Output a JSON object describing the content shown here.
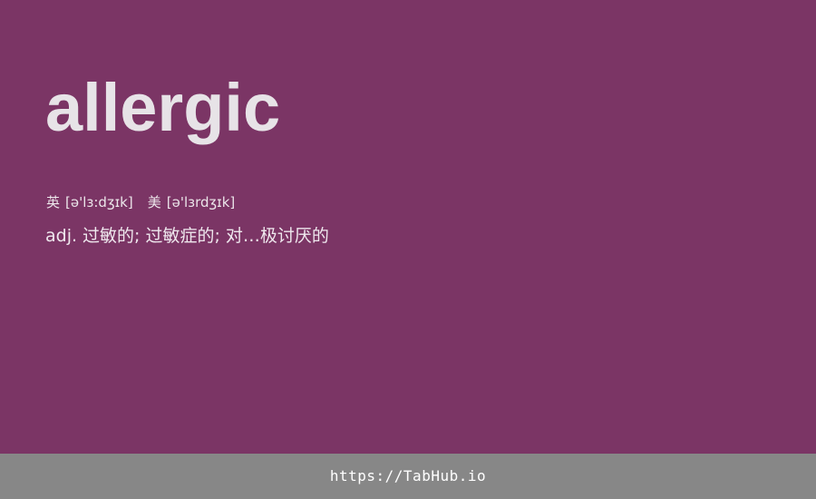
{
  "colors": {
    "background": "#7b3565",
    "footer_background": "#878787",
    "word_text": "#e7e3e7",
    "footer_text": "#ffffff"
  },
  "entry": {
    "word": "allergic",
    "pronunciations": [
      {
        "label": "英",
        "ipa": "[ə'lɜ:dʒɪk]"
      },
      {
        "label": "美",
        "ipa": "[ə'lɜrdʒɪk]"
      }
    ],
    "definition": {
      "part_of_speech": "adj.",
      "meaning": "过敏的; 过敏症的; 对…极讨厌的"
    }
  },
  "footer": {
    "link_text": "https://TabHub.io"
  }
}
